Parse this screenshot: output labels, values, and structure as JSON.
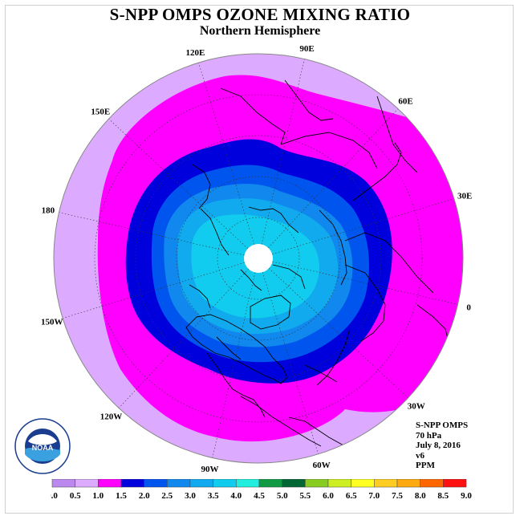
{
  "title": "S-NPP OMPS OZONE MIXING RATIO",
  "subtitle": "Northern Hemisphere",
  "longitude_labels": [
    {
      "text": "90E",
      "lon": 90
    },
    {
      "text": "60E",
      "lon": 60
    },
    {
      "text": "30E",
      "lon": 30
    },
    {
      "text": "0",
      "lon": 0
    },
    {
      "text": "30W",
      "lon": -30
    },
    {
      "text": "60W",
      "lon": -60
    },
    {
      "text": "90W",
      "lon": -90
    },
    {
      "text": "120W",
      "lon": -120
    },
    {
      "text": "150W",
      "lon": -150
    },
    {
      "text": "180",
      "lon": 180
    },
    {
      "text": "150E",
      "lon": 150
    },
    {
      "text": "120E",
      "lon": 120
    }
  ],
  "info": {
    "instrument": "S-NPP OMPS",
    "pressure": "70 hPa",
    "date": "July 8, 2016",
    "version": "v6",
    "units": "PPM"
  },
  "logo": {
    "text": "NOAA",
    "ring_text": "NATIONAL OCEANIC AND ATMOSPHERIC ADMINISTRATION · U.S. DEPARTMENT OF COMMERCE"
  },
  "colorbar": {
    "ticks": [
      "0.0",
      "0.5",
      "1.0",
      "1.5",
      "2.0",
      "2.5",
      "3.0",
      "3.5",
      "4.0",
      "4.5",
      "5.0",
      "5.5",
      "6.0",
      "6.5",
      "7.0",
      "7.5",
      "8.0",
      "8.5",
      "9.0"
    ],
    "colors": [
      "#bb88ee",
      "#dcaaff",
      "#ff00ff",
      "#0000dd",
      "#0055ee",
      "#1188ee",
      "#11aaee",
      "#11ccee",
      "#22eedd",
      "#119944",
      "#006633",
      "#88cc22",
      "#ccee22",
      "#ffff22",
      "#ffcc22",
      "#ffaa11",
      "#ff6600",
      "#ff1111",
      "#aa5544"
    ]
  },
  "map_colors": {
    "c_0_5_1_0": "#dcaaff",
    "c_1_0_1_5": "#ff00ff",
    "c_1_5_2_0": "#0000dd",
    "c_2_0_2_5": "#0055ee",
    "c_2_5_3_0": "#1188ee",
    "c_3_0_3_5": "#11aaee",
    "c_3_5_4_0": "#11ccee",
    "no_data": "#ffffff"
  }
}
